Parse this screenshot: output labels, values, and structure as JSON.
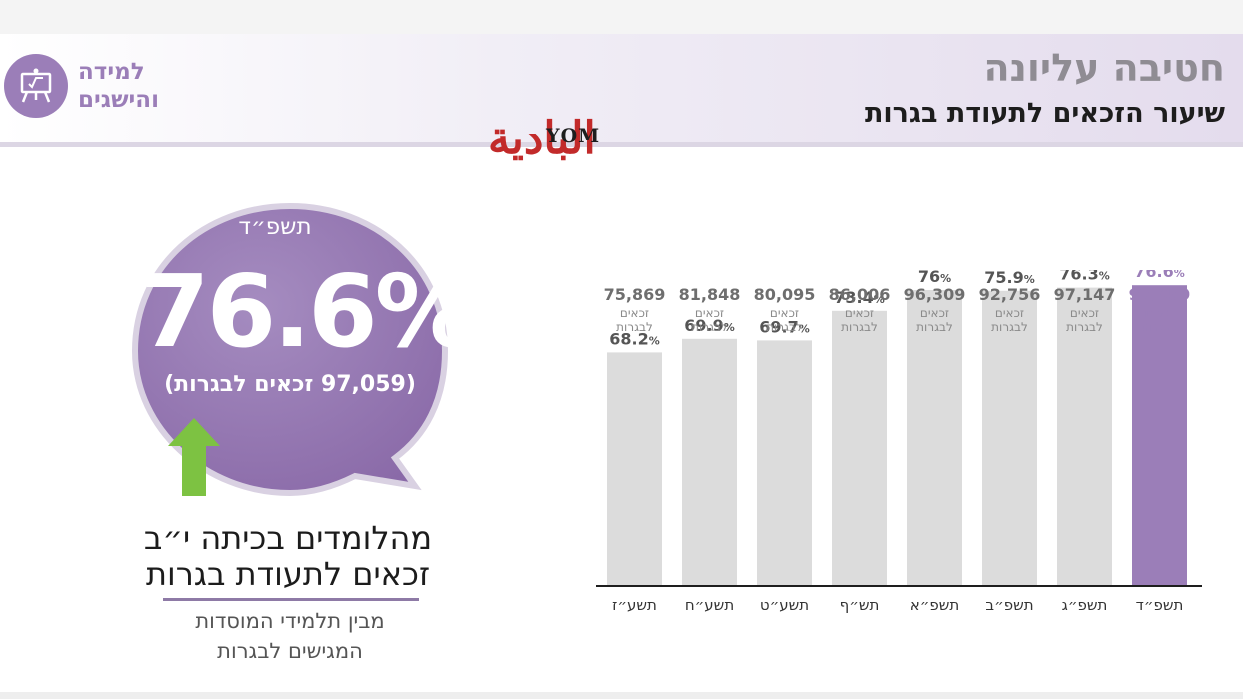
{
  "header": {
    "title": "חטיבה עליונה",
    "subtitle": "שיעור הזכאים לתעודת בגרות",
    "badge_line1": "למידה",
    "badge_line2": "והישגים",
    "badge_icon": "classroom-board-icon"
  },
  "watermark": {
    "arabic": "البادية",
    "english": "YOM"
  },
  "highlight": {
    "year": "תשפ״ד",
    "percent": "76.6%",
    "eligible_note": "(97,059 זכאים לבגרות)",
    "caption_line1": "מהלומדים בכיתה י״ב",
    "caption_line2": "זכאים לתעודת בגרות",
    "sub_line1": "מבין תלמידי המוסדות",
    "sub_line2": "המגישים לבגרות"
  },
  "colors": {
    "accent": "#9b7eb8",
    "bar_default": "#dcdcdc",
    "bar_highlight": "#9b7eb8",
    "arrow": "#7dc242"
  },
  "chart_data": {
    "type": "bar",
    "categories": [
      "תשע״ז",
      "תשע״ח",
      "תשע״ט",
      "תש״ף",
      "תשפ״א",
      "תשפ״ב",
      "תשפ״ג",
      "תשפ״ד"
    ],
    "values": [
      68.2,
      69.9,
      69.7,
      73.4,
      76,
      75.9,
      76.3,
      76.6
    ],
    "value_labels": [
      "68.2",
      "69.9",
      "69.7",
      "73.4",
      "76",
      "75.9",
      "76.3",
      "76.6"
    ],
    "value_suffix": "%",
    "eligible_counts": [
      "75,869",
      "81,848",
      "80,095",
      "86,006",
      "96,309",
      "92,756",
      "97,147",
      "97,059"
    ],
    "count_label_line1": "זכאים",
    "count_label_line2": "לבגרות",
    "highlight_index": 7,
    "ylim": [
      0,
      100
    ],
    "grid": false,
    "title": "",
    "xlabel": "",
    "ylabel": ""
  }
}
